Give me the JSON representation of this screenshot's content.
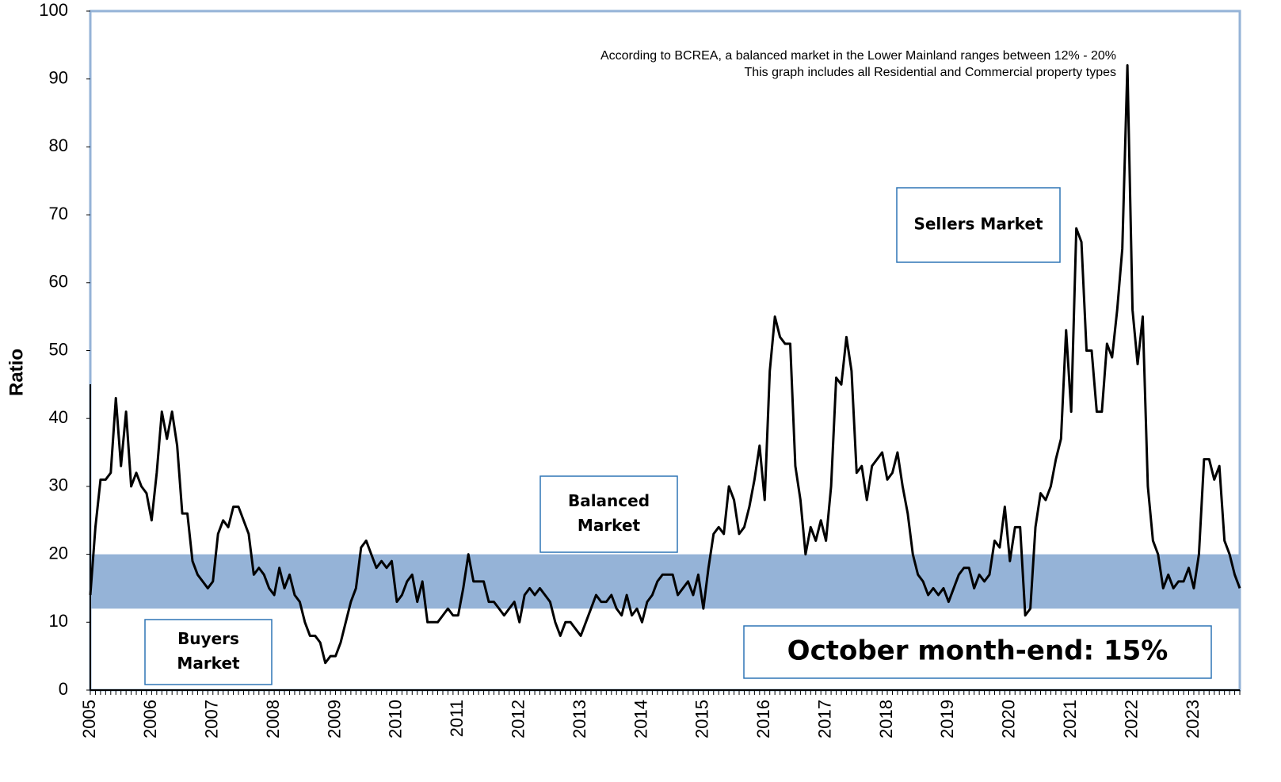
{
  "chart_data": {
    "type": "line",
    "ylabel": "Ratio",
    "color": "#000000",
    "band": [
      12,
      20
    ],
    "band_color": "#95b3d7",
    "ylim": [
      0,
      100
    ],
    "yticks": [
      0,
      10,
      20,
      30,
      40,
      50,
      60,
      70,
      80,
      90,
      100
    ],
    "grid": false,
    "notes": [
      "According to BCREA, a balanced market in the Lower Mainland ranges between 12% - 20%",
      "This graph includes all Residential and Commercial property types"
    ],
    "labels": [
      [
        "Sellers Market"
      ],
      [
        "Balanced",
        "Market"
      ],
      [
        "Buyers",
        "Market"
      ],
      [
        "October month-end: 15%"
      ]
    ],
    "categories": [
      "2005",
      null,
      null,
      null,
      null,
      null,
      null,
      null,
      null,
      null,
      null,
      null,
      "2006",
      null,
      null,
      null,
      null,
      null,
      null,
      null,
      null,
      null,
      null,
      null,
      "2007",
      null,
      null,
      null,
      null,
      null,
      null,
      null,
      null,
      null,
      null,
      null,
      "2008",
      null,
      null,
      null,
      null,
      null,
      null,
      null,
      null,
      null,
      null,
      null,
      "2009",
      null,
      null,
      null,
      null,
      null,
      null,
      null,
      null,
      null,
      null,
      null,
      "2010",
      null,
      null,
      null,
      null,
      null,
      null,
      null,
      null,
      null,
      null,
      null,
      "2011",
      null,
      null,
      null,
      null,
      null,
      null,
      null,
      null,
      null,
      null,
      null,
      "2012",
      null,
      null,
      null,
      null,
      null,
      null,
      null,
      null,
      null,
      null,
      null,
      "2013",
      null,
      null,
      null,
      null,
      null,
      null,
      null,
      null,
      null,
      null,
      null,
      "2014",
      null,
      null,
      null,
      null,
      null,
      null,
      null,
      null,
      null,
      null,
      null,
      "2015",
      null,
      null,
      null,
      null,
      null,
      null,
      null,
      null,
      null,
      null,
      null,
      "2016",
      null,
      null,
      null,
      null,
      null,
      null,
      null,
      null,
      null,
      null,
      null,
      "2017",
      null,
      null,
      null,
      null,
      null,
      null,
      null,
      null,
      null,
      null,
      null,
      "2018",
      null,
      null,
      null,
      null,
      null,
      null,
      null,
      null,
      null,
      null,
      null,
      "2019",
      null,
      null,
      null,
      null,
      null,
      null,
      null,
      null,
      null,
      null,
      null,
      "2020",
      null,
      null,
      null,
      null,
      null,
      null,
      null,
      null,
      null,
      null,
      null,
      "2021",
      null,
      null,
      null,
      null,
      null,
      null,
      null,
      null,
      null,
      null,
      null,
      "2022",
      null,
      null,
      null,
      null,
      null,
      null,
      null,
      null,
      null,
      null,
      null,
      "2023",
      null,
      null,
      null,
      null,
      null,
      null,
      null,
      null,
      null
    ],
    "values": [
      14,
      24,
      31,
      31,
      32,
      43,
      33,
      41,
      30,
      32,
      30,
      29,
      25,
      32,
      41,
      37,
      41,
      36,
      26,
      26,
      19,
      17,
      16,
      15,
      16,
      23,
      25,
      24,
      27,
      27,
      25,
      23,
      17,
      18,
      17,
      15,
      14,
      18,
      15,
      17,
      14,
      13,
      10,
      8,
      8,
      7,
      4,
      5,
      5,
      7,
      10,
      13,
      15,
      21,
      22,
      20,
      18,
      19,
      18,
      19,
      13,
      14,
      16,
      17,
      13,
      16,
      10,
      10,
      10,
      11,
      12,
      11,
      11,
      15,
      20,
      16,
      16,
      16,
      13,
      13,
      12,
      11,
      12,
      13,
      10,
      14,
      15,
      14,
      15,
      14,
      13,
      10,
      8,
      10,
      10,
      9,
      8,
      10,
      12,
      14,
      13,
      13,
      14,
      12,
      11,
      14,
      11,
      12,
      10,
      13,
      14,
      16,
      17,
      17,
      17,
      14,
      15,
      16,
      14,
      17,
      12,
      18,
      23,
      24,
      23,
      30,
      28,
      23,
      24,
      27,
      31,
      36,
      28,
      47,
      55,
      52,
      51,
      51,
      33,
      28,
      20,
      24,
      22,
      25,
      22,
      30,
      46,
      45,
      52,
      47,
      32,
      33,
      28,
      33,
      34,
      35,
      31,
      32,
      35,
      30,
      26,
      20,
      17,
      16,
      14,
      15,
      14,
      15,
      13,
      15,
      17,
      18,
      18,
      15,
      17,
      16,
      17,
      22,
      21,
      27,
      19,
      24,
      24,
      11,
      12,
      24,
      29,
      28,
      30,
      34,
      37,
      53,
      41,
      68,
      66,
      50,
      50,
      41,
      41,
      51,
      49,
      56,
      65,
      92,
      56,
      48,
      55,
      30,
      22,
      20,
      15,
      17,
      15,
      16,
      16,
      18,
      15,
      20,
      34,
      34,
      31,
      33,
      22,
      20,
      17,
      15
    ]
  }
}
